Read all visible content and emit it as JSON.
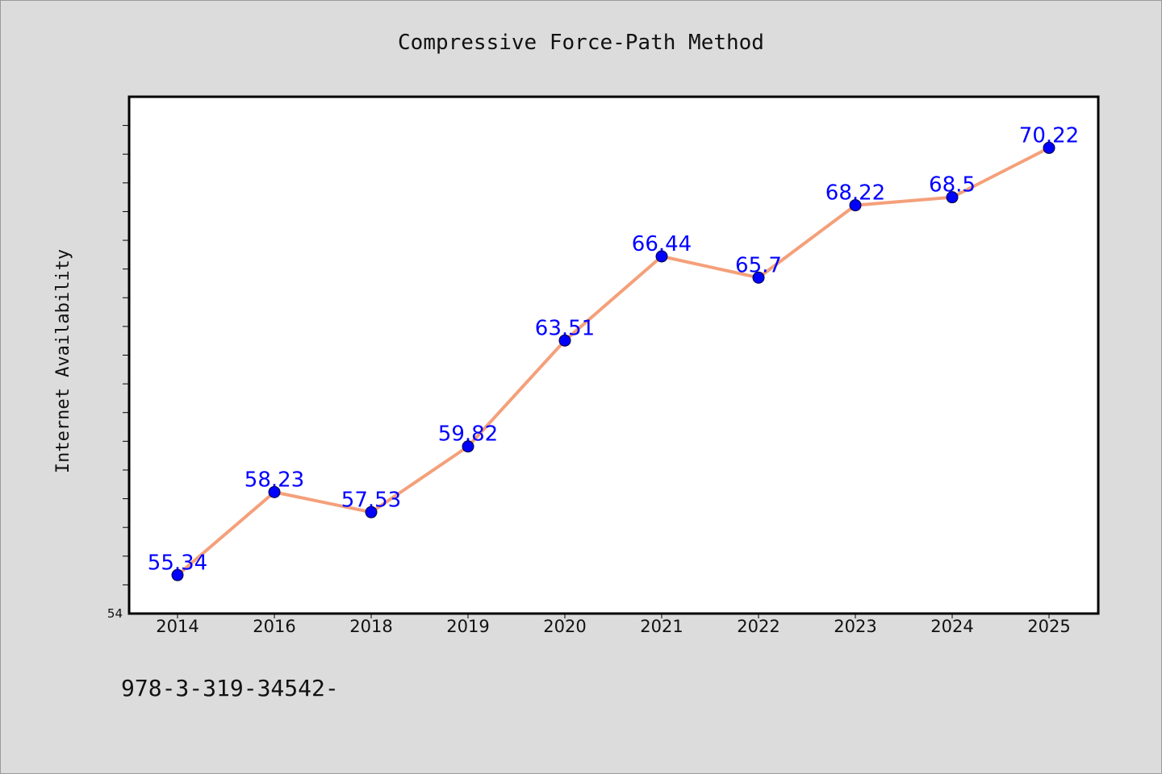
{
  "chart_data": {
    "type": "line",
    "title": "Compressive Force-Path Method",
    "xlabel": "",
    "ylabel": "Internet Availability",
    "categories": [
      "2014",
      "2016",
      "2018",
      "2019",
      "2020",
      "2021",
      "2022",
      "2023",
      "2024",
      "2025"
    ],
    "series": [
      {
        "values": [
          55.34,
          58.23,
          57.53,
          59.82,
          63.51,
          66.44,
          65.7,
          68.22,
          68.5,
          70.22
        ],
        "data_labels": [
          "55.34",
          "58.23",
          "57.53",
          "59.82",
          "63.51",
          "66.44",
          "65.7",
          "68.22",
          "68.5",
          "70.22"
        ],
        "line_color": "#f4a07a",
        "marker_color": "#0000ff"
      }
    ],
    "ylim": [
      54,
      72
    ],
    "y_tick_labels": [
      "54"
    ],
    "y_minor_tick_step": 1,
    "grid": false,
    "legend": "none"
  },
  "footnote": "978-3-319-34542-",
  "colors": {
    "background": "#dcdcdc",
    "plot_background": "#ffffff",
    "data_label": "#0000ff"
  }
}
